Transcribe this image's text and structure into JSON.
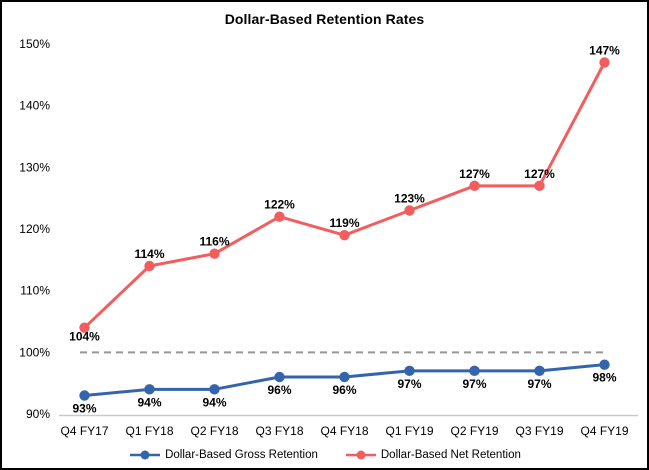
{
  "chart_data": {
    "type": "line",
    "title": "Dollar-Based Retention Rates",
    "categories": [
      "Q4 FY17",
      "Q1 FY18",
      "Q2 FY18",
      "Q3 FY18",
      "Q4 FY18",
      "Q1 FY19",
      "Q2 FY19",
      "Q3 FY19",
      "Q4 FY19"
    ],
    "series": [
      {
        "name": "Dollar-Based Gross Retention",
        "color": "#3465AC",
        "values": [
          93,
          94,
          94,
          96,
          96,
          97,
          97,
          97,
          98
        ],
        "point_labels": [
          "93%",
          "94%",
          "94%",
          "96%",
          "96%",
          "97%",
          "97%",
          "97%",
          "98%"
        ],
        "label_placement": "below"
      },
      {
        "name": "Dollar-Based Net Retention",
        "color": "#F25E5E",
        "values": [
          104,
          114,
          116,
          122,
          119,
          123,
          127,
          127,
          147
        ],
        "point_labels": [
          "104%",
          "114%",
          "116%",
          "122%",
          "119%",
          "123%",
          "127%",
          "127%",
          "147%"
        ],
        "label_placement": "above",
        "label_overrides": {
          "0": "below"
        }
      }
    ],
    "ylim": [
      90,
      150
    ],
    "y_ticks": [
      {
        "value": 90,
        "label": "90%"
      },
      {
        "value": 100,
        "label": "100%"
      },
      {
        "value": 110,
        "label": "110%"
      },
      {
        "value": 120,
        "label": "120%"
      },
      {
        "value": 130,
        "label": "130%"
      },
      {
        "value": 140,
        "label": "140%"
      },
      {
        "value": 150,
        "label": "150%"
      }
    ],
    "reference_line": {
      "value": 100,
      "style": "dashed",
      "color": "#969696"
    },
    "axis_line_color": "#C9C9C9",
    "grid": false,
    "legend_position": "bottom"
  }
}
